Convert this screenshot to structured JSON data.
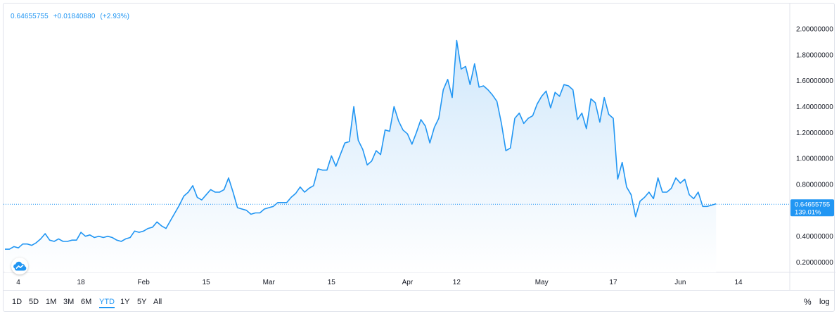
{
  "legend": {
    "price": "0.64655755",
    "change": "+0.01840880",
    "change_pct": "(+2.93%)"
  },
  "badge": {
    "price": "0.64655755",
    "percent": "139.01%"
  },
  "ranges": [
    "1D",
    "5D",
    "1M",
    "3M",
    "6M",
    "YTD",
    "1Y",
    "5Y",
    "All"
  ],
  "active_range": "YTD",
  "percent_toggle": "%",
  "log_toggle": "log",
  "logo_icon": "tradingview-cloud-icon",
  "colors": {
    "line": "#2196f3",
    "fill_top": "#cde6fb",
    "fill_bottom": "#ffffff",
    "badge": "#2196f3"
  },
  "chart_data": {
    "type": "area",
    "x_start": "2021-01-01",
    "x_end": "2021-06-10",
    "x_ticks": [
      {
        "label": "4",
        "date": "2021-01-04"
      },
      {
        "label": "18",
        "date": "2021-01-18"
      },
      {
        "label": "Feb",
        "date": "2021-02-01"
      },
      {
        "label": "15",
        "date": "2021-02-15"
      },
      {
        "label": "Mar",
        "date": "2021-03-01"
      },
      {
        "label": "15",
        "date": "2021-03-15"
      },
      {
        "label": "Apr",
        "date": "2021-04-01"
      },
      {
        "label": "12",
        "date": "2021-04-12"
      },
      {
        "label": "May",
        "date": "2021-05-01"
      },
      {
        "label": "17",
        "date": "2021-05-17"
      },
      {
        "label": "Jun",
        "date": "2021-06-01"
      },
      {
        "label": "14",
        "date": "2021-06-14"
      }
    ],
    "y_ticks": [
      "0.20000000",
      "0.40000000",
      "0.60000000",
      "0.80000000",
      "1.00000000",
      "1.20000000",
      "1.40000000",
      "1.60000000",
      "1.80000000",
      "2.00000000"
    ],
    "ylim": [
      0.07,
      2.13
    ],
    "last_value": 0.64655755,
    "series": [
      {
        "values": [
          [
            "2021-01-01",
            0.3
          ],
          [
            "2021-01-02",
            0.3
          ],
          [
            "2021-01-03",
            0.32
          ],
          [
            "2021-01-04",
            0.31
          ],
          [
            "2021-01-05",
            0.34
          ],
          [
            "2021-01-06",
            0.34
          ],
          [
            "2021-01-07",
            0.33
          ],
          [
            "2021-01-08",
            0.35
          ],
          [
            "2021-01-09",
            0.38
          ],
          [
            "2021-01-10",
            0.42
          ],
          [
            "2021-01-11",
            0.37
          ],
          [
            "2021-01-12",
            0.36
          ],
          [
            "2021-01-13",
            0.38
          ],
          [
            "2021-01-14",
            0.36
          ],
          [
            "2021-01-15",
            0.36
          ],
          [
            "2021-01-16",
            0.37
          ],
          [
            "2021-01-17",
            0.37
          ],
          [
            "2021-01-18",
            0.43
          ],
          [
            "2021-01-19",
            0.4
          ],
          [
            "2021-01-20",
            0.41
          ],
          [
            "2021-01-21",
            0.39
          ],
          [
            "2021-01-22",
            0.4
          ],
          [
            "2021-01-23",
            0.39
          ],
          [
            "2021-01-24",
            0.4
          ],
          [
            "2021-01-25",
            0.39
          ],
          [
            "2021-01-26",
            0.37
          ],
          [
            "2021-01-27",
            0.36
          ],
          [
            "2021-01-28",
            0.38
          ],
          [
            "2021-01-29",
            0.39
          ],
          [
            "2021-01-30",
            0.44
          ],
          [
            "2021-01-31",
            0.43
          ],
          [
            "2021-02-01",
            0.44
          ],
          [
            "2021-02-02",
            0.46
          ],
          [
            "2021-02-03",
            0.47
          ],
          [
            "2021-02-04",
            0.51
          ],
          [
            "2021-02-05",
            0.48
          ],
          [
            "2021-02-06",
            0.46
          ],
          [
            "2021-02-07",
            0.52
          ],
          [
            "2021-02-08",
            0.58
          ],
          [
            "2021-02-09",
            0.64
          ],
          [
            "2021-02-10",
            0.71
          ],
          [
            "2021-02-11",
            0.74
          ],
          [
            "2021-02-12",
            0.79
          ],
          [
            "2021-02-13",
            0.7
          ],
          [
            "2021-02-14",
            0.68
          ],
          [
            "2021-02-15",
            0.72
          ],
          [
            "2021-02-16",
            0.76
          ],
          [
            "2021-02-17",
            0.74
          ],
          [
            "2021-02-18",
            0.74
          ],
          [
            "2021-02-19",
            0.76
          ],
          [
            "2021-02-20",
            0.85
          ],
          [
            "2021-02-21",
            0.74
          ],
          [
            "2021-02-22",
            0.62
          ],
          [
            "2021-02-23",
            0.61
          ],
          [
            "2021-02-24",
            0.6
          ],
          [
            "2021-02-25",
            0.57
          ],
          [
            "2021-02-26",
            0.58
          ],
          [
            "2021-02-27",
            0.58
          ],
          [
            "2021-02-28",
            0.61
          ],
          [
            "2021-03-01",
            0.62
          ],
          [
            "2021-03-02",
            0.63
          ],
          [
            "2021-03-03",
            0.66
          ],
          [
            "2021-03-04",
            0.66
          ],
          [
            "2021-03-05",
            0.66
          ],
          [
            "2021-03-06",
            0.7
          ],
          [
            "2021-03-07",
            0.73
          ],
          [
            "2021-03-08",
            0.78
          ],
          [
            "2021-03-09",
            0.74
          ],
          [
            "2021-03-10",
            0.77
          ],
          [
            "2021-03-11",
            0.79
          ],
          [
            "2021-03-12",
            0.92
          ],
          [
            "2021-03-13",
            0.91
          ],
          [
            "2021-03-14",
            0.91
          ],
          [
            "2021-03-15",
            1.02
          ],
          [
            "2021-03-16",
            0.94
          ],
          [
            "2021-03-17",
            1.03
          ],
          [
            "2021-03-18",
            1.12
          ],
          [
            "2021-03-19",
            1.13
          ],
          [
            "2021-03-20",
            1.4
          ],
          [
            "2021-03-21",
            1.14
          ],
          [
            "2021-03-22",
            1.07
          ],
          [
            "2021-03-23",
            0.95
          ],
          [
            "2021-03-24",
            0.98
          ],
          [
            "2021-03-25",
            1.06
          ],
          [
            "2021-03-26",
            1.03
          ],
          [
            "2021-03-27",
            1.22
          ],
          [
            "2021-03-28",
            1.21
          ],
          [
            "2021-03-29",
            1.4
          ],
          [
            "2021-03-30",
            1.29
          ],
          [
            "2021-03-31",
            1.22
          ],
          [
            "2021-04-01",
            1.19
          ],
          [
            "2021-04-02",
            1.11
          ],
          [
            "2021-04-03",
            1.2
          ],
          [
            "2021-04-04",
            1.3
          ],
          [
            "2021-04-05",
            1.25
          ],
          [
            "2021-04-06",
            1.12
          ],
          [
            "2021-04-07",
            1.24
          ],
          [
            "2021-04-08",
            1.31
          ],
          [
            "2021-04-09",
            1.53
          ],
          [
            "2021-04-10",
            1.61
          ],
          [
            "2021-04-11",
            1.47
          ],
          [
            "2021-04-12",
            1.91
          ],
          [
            "2021-04-13",
            1.69
          ],
          [
            "2021-04-14",
            1.71
          ],
          [
            "2021-04-15",
            1.57
          ],
          [
            "2021-04-16",
            1.73
          ],
          [
            "2021-04-17",
            1.55
          ],
          [
            "2021-04-18",
            1.56
          ],
          [
            "2021-04-19",
            1.53
          ],
          [
            "2021-04-20",
            1.49
          ],
          [
            "2021-04-21",
            1.44
          ],
          [
            "2021-04-22",
            1.27
          ],
          [
            "2021-04-23",
            1.06
          ],
          [
            "2021-04-24",
            1.08
          ],
          [
            "2021-04-25",
            1.31
          ],
          [
            "2021-04-26",
            1.35
          ],
          [
            "2021-04-27",
            1.27
          ],
          [
            "2021-04-28",
            1.31
          ],
          [
            "2021-04-29",
            1.33
          ],
          [
            "2021-04-30",
            1.42
          ],
          [
            "2021-05-01",
            1.48
          ],
          [
            "2021-05-02",
            1.52
          ],
          [
            "2021-05-03",
            1.39
          ],
          [
            "2021-05-04",
            1.51
          ],
          [
            "2021-05-05",
            1.48
          ],
          [
            "2021-05-06",
            1.57
          ],
          [
            "2021-05-07",
            1.56
          ],
          [
            "2021-05-08",
            1.53
          ],
          [
            "2021-05-09",
            1.3
          ],
          [
            "2021-05-10",
            1.35
          ],
          [
            "2021-05-11",
            1.23
          ],
          [
            "2021-05-12",
            1.46
          ],
          [
            "2021-05-13",
            1.43
          ],
          [
            "2021-05-14",
            1.28
          ],
          [
            "2021-05-15",
            1.47
          ],
          [
            "2021-05-16",
            1.34
          ],
          [
            "2021-05-17",
            1.31
          ],
          [
            "2021-05-18",
            0.84
          ],
          [
            "2021-05-19",
            0.97
          ],
          [
            "2021-05-20",
            0.78
          ],
          [
            "2021-05-21",
            0.72
          ],
          [
            "2021-05-22",
            0.55
          ],
          [
            "2021-05-23",
            0.67
          ],
          [
            "2021-05-24",
            0.7
          ],
          [
            "2021-05-25",
            0.74
          ],
          [
            "2021-05-26",
            0.69
          ],
          [
            "2021-05-27",
            0.85
          ],
          [
            "2021-05-28",
            0.74
          ],
          [
            "2021-05-29",
            0.74
          ],
          [
            "2021-05-30",
            0.77
          ],
          [
            "2021-05-31",
            0.85
          ],
          [
            "2021-06-01",
            0.81
          ],
          [
            "2021-06-02",
            0.84
          ],
          [
            "2021-06-03",
            0.72
          ],
          [
            "2021-06-04",
            0.69
          ],
          [
            "2021-06-05",
            0.74
          ],
          [
            "2021-06-06",
            0.63
          ],
          [
            "2021-06-07",
            0.63
          ],
          [
            "2021-06-08",
            0.64
          ],
          [
            "2021-06-09",
            0.65
          ]
        ]
      }
    ]
  }
}
